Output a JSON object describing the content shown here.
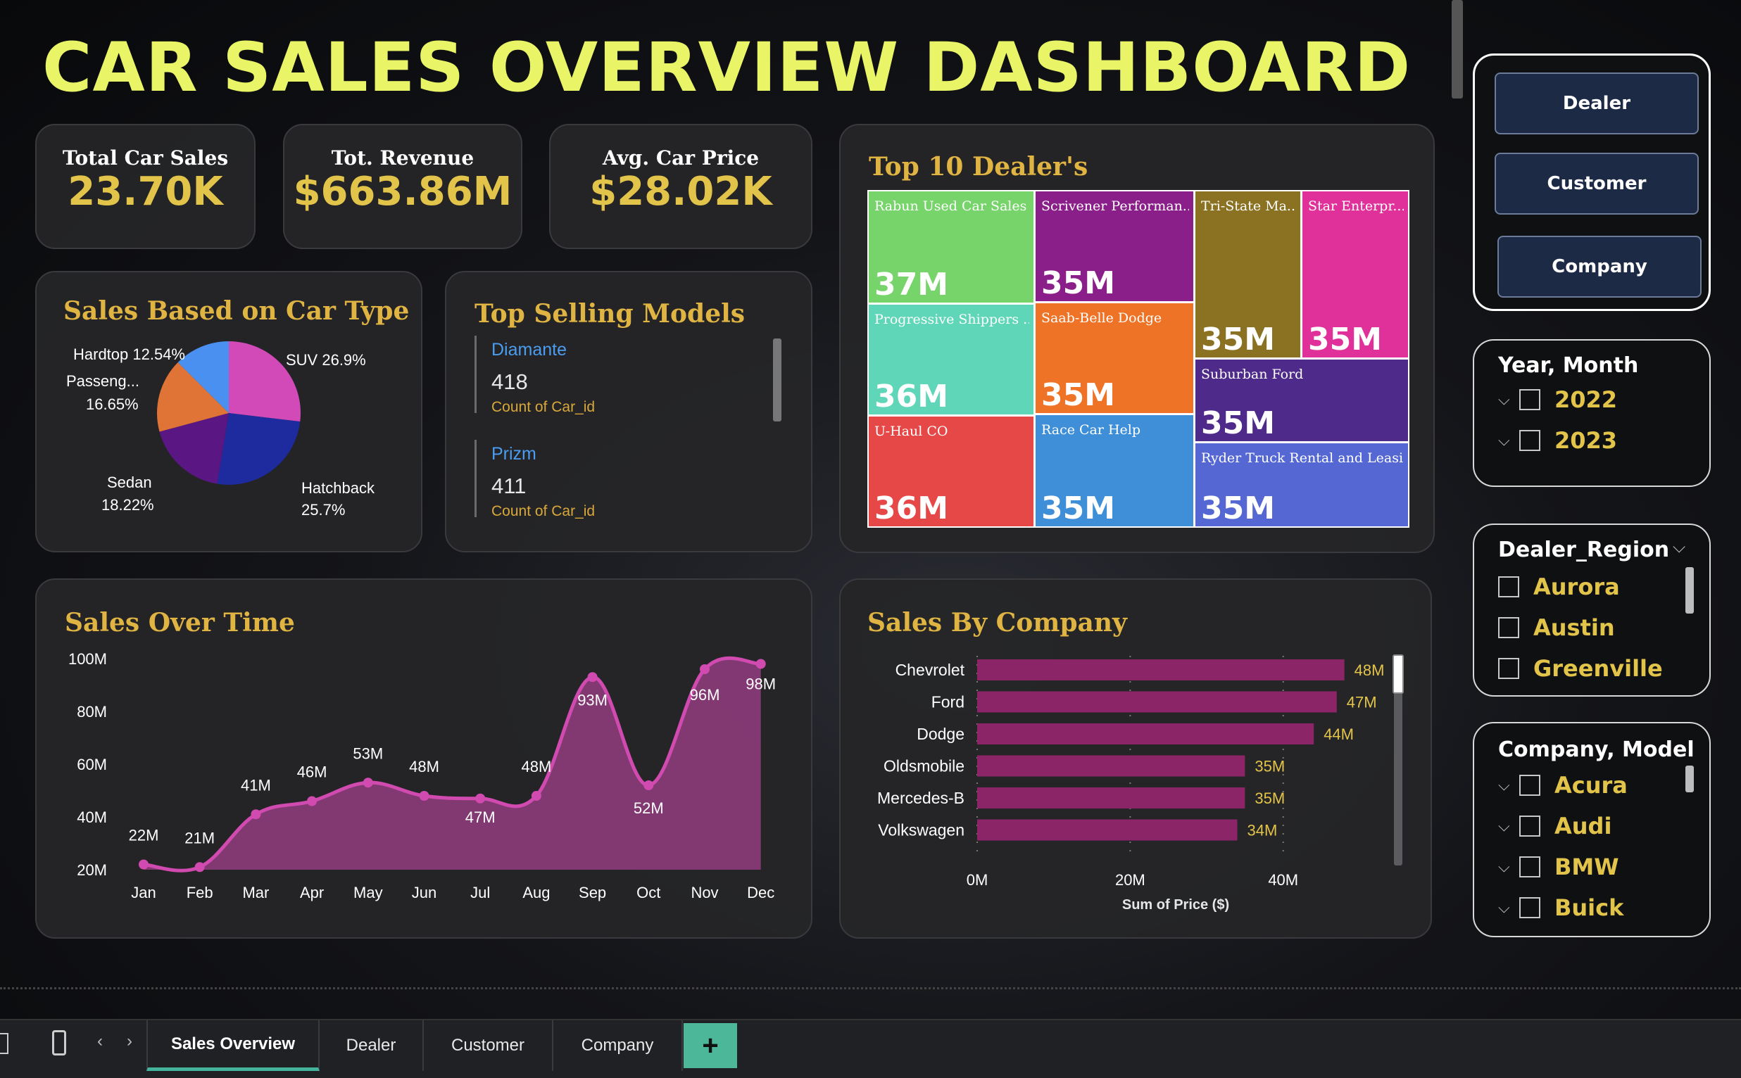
{
  "title": "CAR SALES OVERVIEW DASHBOARD",
  "kpis": [
    {
      "label": "Total Car Sales",
      "value": "23.70K"
    },
    {
      "label": "Tot. Revenue",
      "value": "$663.86M"
    },
    {
      "label": "Avg. Car Price",
      "value": "$28.02K"
    }
  ],
  "car_type": {
    "title": "Sales Based on Car Type",
    "labels": {
      "hardtop": "Hardtop 12.54%",
      "suv": "SUV 26.9%",
      "passenger_1": "Passeng...",
      "passenger_2": "16.65%",
      "sedan_1": "Sedan",
      "sedan_2": "18.22%",
      "hatchback_1": "Hatchback",
      "hatchback_2": "25.7%"
    }
  },
  "top_models": {
    "title": "Top Selling Models",
    "items": [
      {
        "name": "Diamante",
        "count": "418",
        "sub": "Count of Car_id"
      },
      {
        "name": "Prizm",
        "count": "411",
        "sub": "Count of Car_id"
      }
    ]
  },
  "top_dealers": {
    "title": "Top 10 Dealer's",
    "cells": [
      {
        "name": "Rabun Used Car Sales",
        "value": "37M",
        "color": "#76d46a"
      },
      {
        "name": "Scrivener Performan...",
        "value": "35M",
        "color": "#8b1f8a"
      },
      {
        "name": "Tri-State Ma...",
        "value": "35M",
        "color": "#8a7222"
      },
      {
        "name": "Star Enterpr...",
        "value": "35M",
        "color": "#e0309a"
      },
      {
        "name": "Progressive Shippers ...",
        "value": "36M",
        "color": "#5fd6b8"
      },
      {
        "name": "Saab-Belle Dodge",
        "value": "35M",
        "color": "#ee7326"
      },
      {
        "name": "Suburban Ford",
        "value": "35M",
        "color": "#4e2a8a"
      },
      {
        "name": "U-Haul CO",
        "value": "36M",
        "color": "#e64848"
      },
      {
        "name": "Race Car Help",
        "value": "35M",
        "color": "#3f8fd8"
      },
      {
        "name": "Ryder Truck Rental and Leasi...",
        "value": "35M",
        "color": "#5467d2"
      }
    ]
  },
  "sales_over_time": {
    "title": "Sales Over Time"
  },
  "sales_by_company": {
    "title": "Sales By Company"
  },
  "chart_data": [
    {
      "type": "pie",
      "title": "Sales Based on Car Type",
      "categories": [
        "SUV",
        "Hatchback",
        "Sedan",
        "Passenger",
        "Hardtop"
      ],
      "values": [
        26.9,
        25.7,
        18.22,
        16.65,
        12.54
      ],
      "colors": [
        "#d14ab8",
        "#1e2b9e",
        "#5a1683",
        "#e07436",
        "#4a90f0"
      ]
    },
    {
      "type": "area",
      "title": "Sales Over Time",
      "categories": [
        "Jan",
        "Feb",
        "Mar",
        "Apr",
        "May",
        "Jun",
        "Jul",
        "Aug",
        "Sep",
        "Oct",
        "Nov",
        "Dec"
      ],
      "values": [
        22,
        21,
        41,
        46,
        53,
        48,
        47,
        48,
        93,
        52,
        96,
        98
      ],
      "labels": [
        "22M",
        "21M",
        "41M",
        "46M",
        "53M",
        "48M",
        "47M",
        "48M",
        "93M",
        "52M",
        "96M",
        "98M"
      ],
      "yticks": [
        "20M",
        "40M",
        "60M",
        "80M",
        "100M"
      ],
      "ylim": [
        20,
        100
      ],
      "color": "#d04ab0"
    },
    {
      "type": "bar",
      "orientation": "horizontal",
      "title": "Sales By Company",
      "categories": [
        "Chevrolet",
        "Ford",
        "Dodge",
        "Oldsmobile",
        "Mercedes-B",
        "Volkswagen"
      ],
      "values": [
        48,
        47,
        44,
        35,
        35,
        34
      ],
      "labels": [
        "48M",
        "47M",
        "44M",
        "35M",
        "35M",
        "34M"
      ],
      "xticks": [
        "0M",
        "20M",
        "40M"
      ],
      "xlabel": "Sum of Price ($)",
      "xlim": [
        0,
        53
      ],
      "color": "#8c2468"
    }
  ],
  "nav_buttons": [
    "Dealer",
    "Customer",
    "Company"
  ],
  "year_month": {
    "title": "Year, Month",
    "items": [
      "2022",
      "2023"
    ]
  },
  "dealer_region": {
    "title": "Dealer_Region",
    "items": [
      "Aurora",
      "Austin",
      "Greenville"
    ]
  },
  "company_model": {
    "title": "Company, Model",
    "items": [
      "Acura",
      "Audi",
      "BMW",
      "Buick"
    ]
  },
  "tabs": [
    "Sales Overview",
    "Dealer",
    "Customer",
    "Company"
  ],
  "add_tab": "+"
}
